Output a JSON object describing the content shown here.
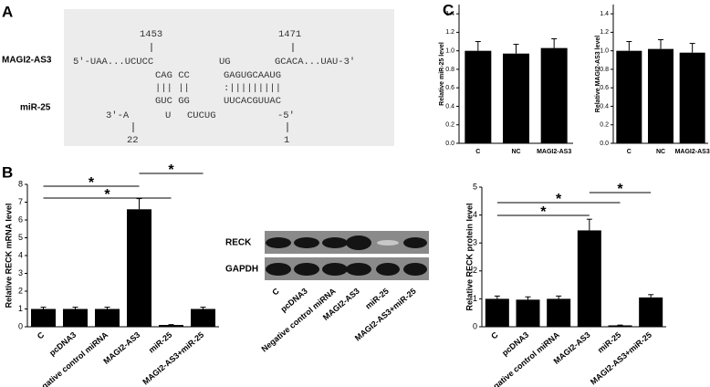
{
  "panel_labels": [
    "A",
    "B",
    "C"
  ],
  "alignment": {
    "mrna_label": "MAGI2-AS3",
    "mirna_label": "miR-25",
    "positions": [
      1453,
      1471,
      22,
      1
    ],
    "fragments": [
      "5'-UAA...UCUCC",
      "UG",
      "GCACA...UAU-3'",
      "CAG CC",
      "GAGUGCAAUG",
      "||| ||",
      ":|||||||||",
      "GUC GG",
      "UUCACGUUAC",
      "3'-A",
      "U",
      "CUCUG",
      "-5'"
    ]
  },
  "gel": {
    "bands": [
      "RECK",
      "GAPDH"
    ]
  },
  "chart_data": [
    {
      "type": "bar",
      "ylabel": "Relative RECK mRNA level",
      "categories": [
        "C",
        "pcDNA3",
        "Negative control miRNA",
        "MAGI2-AS3",
        "miR-25",
        "MAGI2-AS3+miR-25"
      ],
      "series": [
        {
          "color": "#000000",
          "values": [
            1.0,
            1.0,
            1.0,
            6.6,
            0.1,
            1.0
          ],
          "errors": [
            0.1,
            0.1,
            0.1,
            0.6,
            0.02,
            0.1
          ]
        }
      ],
      "ylim": [
        0,
        8
      ],
      "yticks": [
        0,
        1,
        2,
        3,
        4,
        5,
        6,
        7,
        8
      ],
      "annotations": [
        "*",
        "*",
        "*"
      ]
    },
    {
      "type": "bar",
      "ylabel": "Relative miR-25 level",
      "categories": [
        "C",
        "NC",
        "MAGI2-AS3"
      ],
      "series": [
        {
          "color": "#000000",
          "values": [
            1.0,
            0.97,
            1.03
          ],
          "errors": [
            0.1,
            0.1,
            0.1
          ]
        }
      ],
      "ylim": [
        0,
        1.5
      ],
      "yticks": [
        {
          "value": 0,
          "label": "0.0"
        },
        0.2,
        0.4,
        0.6,
        0.8,
        {
          "value": 1,
          "label": "1.0"
        },
        1.2,
        1.4
      ]
    },
    {
      "type": "bar",
      "ylabel": "Relative MAGI2-AS3 level",
      "categories": [
        "C",
        "NC",
        "MAGI2-AS3"
      ],
      "series": [
        {
          "color": "#000000",
          "values": [
            1.0,
            1.02,
            0.98
          ],
          "errors": [
            0.1,
            0.1,
            0.1
          ]
        }
      ],
      "ylim": [
        0,
        1.5
      ],
      "yticks": [
        {
          "value": 0,
          "label": "0.0"
        },
        0.2,
        0.4,
        0.6,
        0.8,
        {
          "value": 1,
          "label": "1.0"
        },
        1.2,
        1.4
      ]
    },
    {
      "type": "bar",
      "ylabel": "Relative RECK protein level",
      "categories": [
        "C",
        "pcDNA3",
        "Negative control miRNA",
        "MAGI2-AS3",
        "miR-25",
        "MAGI2-AS3+miR-25"
      ],
      "series": [
        {
          "color": "#000000",
          "values": [
            1.0,
            0.97,
            1.0,
            3.45,
            0.05,
            1.05
          ],
          "errors": [
            0.1,
            0.1,
            0.1,
            0.4,
            0.01,
            0.1
          ]
        }
      ],
      "ylim": [
        0,
        5
      ],
      "yticks": [
        0,
        1,
        2,
        3,
        4,
        5
      ],
      "annotations": [
        "*",
        "*",
        "*"
      ]
    }
  ]
}
